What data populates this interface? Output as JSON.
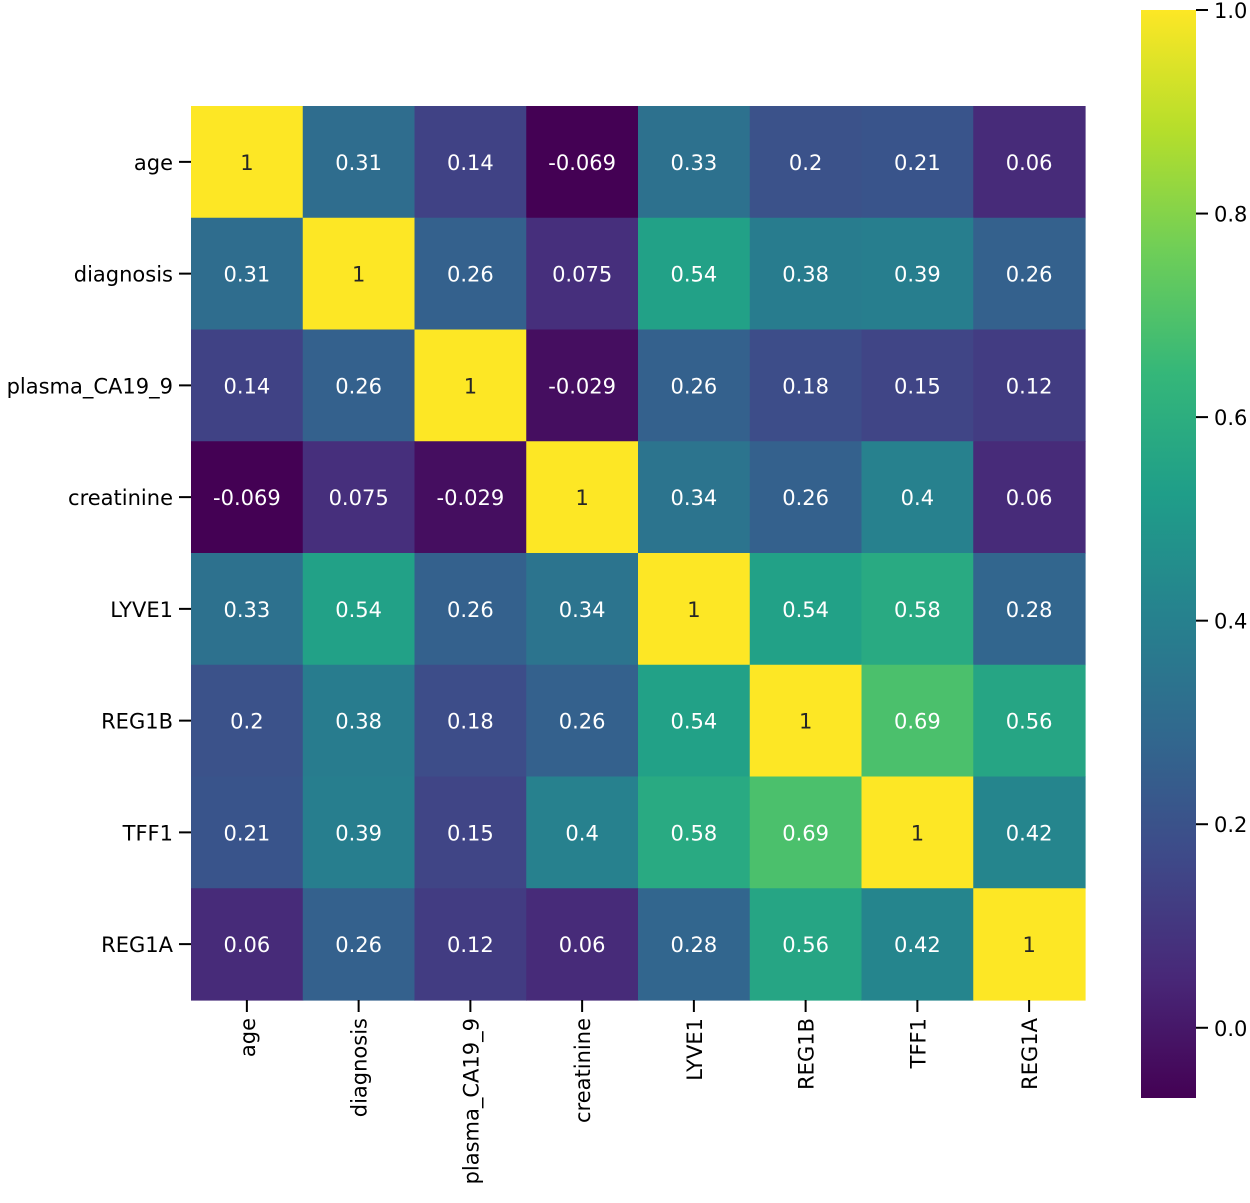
{
  "chart_data": {
    "type": "heatmap",
    "title": "",
    "xlabel": "",
    "ylabel": "",
    "rows": [
      "age",
      "diagnosis",
      "plasma_CA19_9",
      "creatinine",
      "LYVE1",
      "REG1B",
      "TFF1",
      "REG1A"
    ],
    "columns": [
      "age",
      "diagnosis",
      "plasma_CA19_9",
      "creatinine",
      "LYVE1",
      "REG1B",
      "TFF1",
      "REG1A"
    ],
    "values": [
      [
        1,
        0.31,
        0.14,
        -0.069,
        0.33,
        0.2,
        0.21,
        0.06
      ],
      [
        0.31,
        1,
        0.26,
        0.075,
        0.54,
        0.38,
        0.39,
        0.26
      ],
      [
        0.14,
        0.26,
        1,
        -0.029,
        0.26,
        0.18,
        0.15,
        0.12
      ],
      [
        -0.069,
        0.075,
        -0.029,
        1,
        0.34,
        0.26,
        0.4,
        0.06
      ],
      [
        0.33,
        0.54,
        0.26,
        0.34,
        1,
        0.54,
        0.58,
        0.28
      ],
      [
        0.2,
        0.38,
        0.18,
        0.26,
        0.54,
        1,
        0.69,
        0.56
      ],
      [
        0.21,
        0.39,
        0.15,
        0.4,
        0.58,
        0.69,
        1,
        0.42
      ],
      [
        0.06,
        0.26,
        0.12,
        0.06,
        0.28,
        0.56,
        0.42,
        1
      ]
    ],
    "labels": [
      [
        "1",
        "0.31",
        "0.14",
        "-0.069",
        "0.33",
        "0.2",
        "0.21",
        "0.06"
      ],
      [
        "0.31",
        "1",
        "0.26",
        "0.075",
        "0.54",
        "0.38",
        "0.39",
        "0.26"
      ],
      [
        "0.14",
        "0.26",
        "1",
        "-0.029",
        "0.26",
        "0.18",
        "0.15",
        "0.12"
      ],
      [
        "-0.069",
        "0.075",
        "-0.029",
        "1",
        "0.34",
        "0.26",
        "0.4",
        "0.06"
      ],
      [
        "0.33",
        "0.54",
        "0.26",
        "0.34",
        "1",
        "0.54",
        "0.58",
        "0.28"
      ],
      [
        "0.2",
        "0.38",
        "0.18",
        "0.26",
        "0.54",
        "1",
        "0.69",
        "0.56"
      ],
      [
        "0.21",
        "0.39",
        "0.15",
        "0.4",
        "0.58",
        "0.69",
        "1",
        "0.42"
      ],
      [
        "0.06",
        "0.26",
        "0.12",
        "0.06",
        "0.28",
        "0.56",
        "0.42",
        "1"
      ]
    ],
    "colormap": "viridis",
    "colorbar": {
      "vmin": -0.069,
      "vmax": 1.0,
      "ticks": [
        0.0,
        0.2,
        0.4,
        0.6,
        0.8,
        1.0
      ],
      "tick_labels": [
        "0.0",
        "0.2",
        "0.4",
        "0.6",
        "0.8",
        "1.0"
      ],
      "placement": "right"
    }
  }
}
